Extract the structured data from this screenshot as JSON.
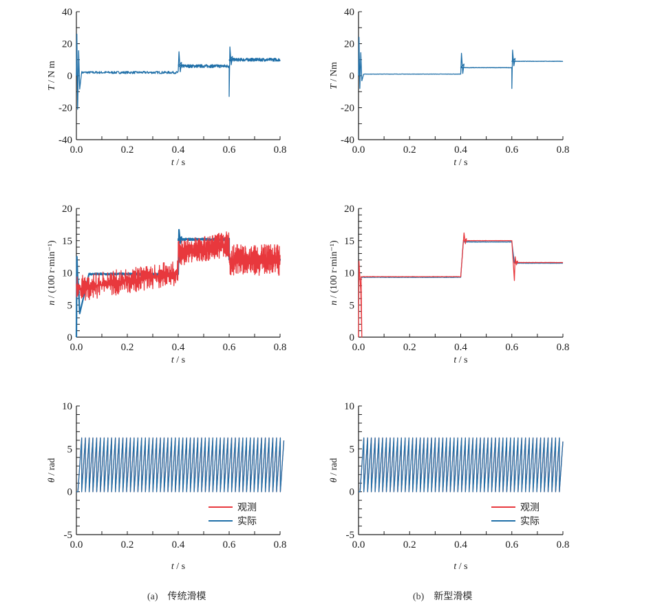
{
  "colors": {
    "observed": "#e8383d",
    "actual": "#1f6fa8",
    "axis": "#1a1a1a"
  },
  "captions": [
    {
      "tag": "(a)",
      "text": "传统滑模"
    },
    {
      "tag": "(b)",
      "text": "新型滑模"
    }
  ],
  "legend": {
    "observed": "观测",
    "actual": "实际"
  },
  "chart_data": [
    {
      "id": "a-torque",
      "column": "a",
      "type": "line",
      "ylabel_italic": "T",
      "ylabel_rest": " / N m",
      "xlabel_italic": "t",
      "xlabel_rest": " / s",
      "xlim": [
        0,
        0.8
      ],
      "ylim": [
        -40,
        40
      ],
      "xticks": [
        "0.0",
        "0.2",
        "0.4",
        "0.6",
        "0.8"
      ],
      "yticks": [
        "-40",
        "-20",
        "0",
        "20",
        "40"
      ],
      "series": [
        {
          "name": "实际",
          "color_key": "actual",
          "segments": [
            {
              "t0": 0.02,
              "t1": 0.4,
              "level": 2,
              "noise": 1.5
            },
            {
              "t0": 0.4,
              "t1": 0.6,
              "level": 6,
              "noise": 2
            },
            {
              "t0": 0.6,
              "t1": 0.8,
              "level": 10,
              "noise": 2
            }
          ],
          "transients": [
            {
              "t": 0.0,
              "peak": 26,
              "trough": -21
            },
            {
              "t": 0.4,
              "peak": 15
            },
            {
              "t": 0.6,
              "peak": 18,
              "trough": -13
            }
          ]
        }
      ]
    },
    {
      "id": "b-torque",
      "column": "b",
      "type": "line",
      "ylabel_italic": "T",
      "ylabel_rest": " / Nm",
      "xlabel_italic": "t",
      "xlabel_rest": " / s",
      "xlim": [
        0,
        0.8
      ],
      "ylim": [
        -40,
        40
      ],
      "xticks": [
        "0.0",
        "0.2",
        "0.4",
        "0.6",
        "0.8"
      ],
      "yticks": [
        "-40",
        "-20",
        "0",
        "20",
        "40"
      ],
      "series": [
        {
          "name": "实际",
          "color_key": "actual",
          "segments": [
            {
              "t0": 0.02,
              "t1": 0.4,
              "level": 1,
              "noise": 0.2
            },
            {
              "t0": 0.4,
              "t1": 0.6,
              "level": 5,
              "noise": 0.2
            },
            {
              "t0": 0.6,
              "t1": 0.8,
              "level": 9,
              "noise": 0.2
            }
          ],
          "transients": [
            {
              "t": 0.0,
              "peak": 24,
              "trough": -8
            },
            {
              "t": 0.4,
              "peak": 14
            },
            {
              "t": 0.6,
              "peak": 16,
              "trough": -8
            }
          ]
        }
      ]
    },
    {
      "id": "a-speed",
      "column": "a",
      "type": "line",
      "ylabel_italic": "n",
      "ylabel_rest": " / (100 r·min⁻¹)",
      "xlabel_italic": "t",
      "xlabel_rest": " / s",
      "xlim": [
        0,
        0.8
      ],
      "ylim": [
        0,
        20
      ],
      "xticks": [
        "0.0",
        "0.2",
        "0.4",
        "0.6",
        "0.8"
      ],
      "yticks": [
        "0",
        "5",
        "10",
        "15",
        "20"
      ],
      "series": [
        {
          "name": "实际",
          "color_key": "actual",
          "segments": [
            {
              "t0": 0.05,
              "t1": 0.4,
              "level": 9.8,
              "noise": 0.3
            },
            {
              "t0": 0.4,
              "t1": 0.6,
              "level": 15.2,
              "noise": 0.3
            },
            {
              "t0": 0.6,
              "t1": 0.8,
              "level": 12,
              "noise": 0.4
            }
          ],
          "transients": [
            {
              "t": 0.01,
              "peak": 12.5,
              "trough": 9.2
            },
            {
              "t": 0.41,
              "peak": 16.7
            }
          ]
        },
        {
          "name": "观测",
          "color_key": "observed",
          "segments": [
            {
              "t0": 0.0,
              "t1": 0.4,
              "level_start": 7.5,
              "level_end": 10,
              "noise": 2.5
            },
            {
              "t0": 0.4,
              "t1": 0.6,
              "level_start": 13,
              "level_end": 14.5,
              "noise": 2.5
            },
            {
              "t0": 0.6,
              "t1": 0.8,
              "level": 12,
              "noise": 3
            }
          ]
        }
      ]
    },
    {
      "id": "b-speed",
      "column": "b",
      "type": "line",
      "ylabel_italic": "n",
      "ylabel_rest": " / (100 r·min⁻¹)",
      "xlabel_italic": "t",
      "xlabel_rest": " / s",
      "xlim": [
        0,
        0.8
      ],
      "ylim": [
        0,
        20
      ],
      "xticks": [
        "0.0",
        "0.2",
        "0.4",
        "0.6",
        "0.8"
      ],
      "yticks": [
        "0",
        "5",
        "10",
        "15",
        "20"
      ],
      "series": [
        {
          "name": "实际",
          "color_key": "actual",
          "segments": [
            {
              "t0": 0.01,
              "t1": 0.4,
              "level": 9.3,
              "noise": 0.05
            },
            {
              "t0": 0.41,
              "t1": 0.6,
              "level": 14.8,
              "noise": 0.05
            },
            {
              "t0": 0.61,
              "t1": 0.8,
              "level": 11.5,
              "noise": 0.05
            }
          ]
        },
        {
          "name": "观测",
          "color_key": "observed",
          "segments": [
            {
              "t0": 0.01,
              "t1": 0.4,
              "level": 9.4,
              "noise": 0.05
            },
            {
              "t0": 0.41,
              "t1": 0.6,
              "level": 15.0,
              "noise": 0.05
            },
            {
              "t0": 0.61,
              "t1": 0.8,
              "level": 11.6,
              "noise": 0.05
            }
          ],
          "transients": [
            {
              "t": 0.005,
              "peak": 11.8
            },
            {
              "t": 0.41,
              "peak": 16.2
            },
            {
              "t": 0.605,
              "peak": 12.5,
              "trough": 8.8
            }
          ]
        }
      ]
    },
    {
      "id": "a-angle",
      "column": "a",
      "type": "line",
      "ylabel_italic": "θ",
      "ylabel_rest": " / rad",
      "xlabel_italic": "t",
      "xlabel_rest": " / s",
      "xlim": [
        0,
        0.8
      ],
      "ylim": [
        -5,
        10
      ],
      "xticks": [
        "0.0",
        "0.2",
        "0.4",
        "0.6",
        "0.8"
      ],
      "yticks": [
        "-5",
        "0",
        "5",
        "10"
      ],
      "series": [
        {
          "name": "观测",
          "color_key": "observed",
          "shape": "sawtooth",
          "min": 0,
          "max": 6.28,
          "cycles": 54
        },
        {
          "name": "实际",
          "color_key": "actual",
          "shape": "sawtooth",
          "min": 0,
          "max": 6.28,
          "cycles": 54
        }
      ],
      "legend_position": "lower-right"
    },
    {
      "id": "b-angle",
      "column": "b",
      "type": "line",
      "ylabel_italic": "θ",
      "ylabel_rest": " / rad",
      "xlabel_italic": "t",
      "xlabel_rest": " / s",
      "xlim": [
        0,
        0.8
      ],
      "ylim": [
        -5,
        10
      ],
      "xticks": [
        "0.0",
        "0.2",
        "0.4",
        "0.6",
        "0.8"
      ],
      "yticks": [
        "-5",
        "0",
        "5",
        "10"
      ],
      "series": [
        {
          "name": "观测",
          "color_key": "observed",
          "shape": "sawtooth",
          "min": 0,
          "max": 6.28,
          "cycles": 54
        },
        {
          "name": "实际",
          "color_key": "actual",
          "shape": "sawtooth",
          "min": 0,
          "max": 6.28,
          "cycles": 54
        }
      ],
      "legend_position": "lower-right"
    }
  ]
}
